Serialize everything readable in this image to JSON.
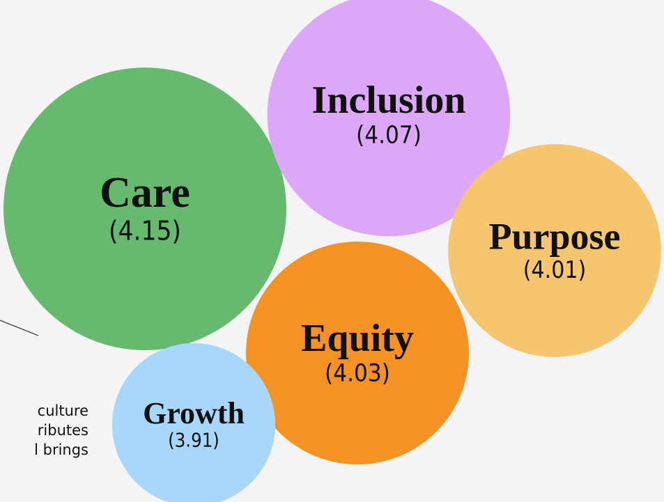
{
  "chart_data": {
    "type": "bubble",
    "categories": [
      "Care",
      "Inclusion",
      "Purpose",
      "Equity",
      "Growth"
    ],
    "values": [
      4.15,
      4.07,
      4.01,
      4.03,
      3.91
    ],
    "value_labels": [
      "(4.15)",
      "(4.07)",
      "(4.01)",
      "(4.03)",
      "(3.91)"
    ],
    "colors": [
      "#67b96f",
      "#dca7f8",
      "#f5c570",
      "#f49324",
      "#a9d6fb"
    ],
    "annotations": [
      "culture",
      "ributes",
      "l brings"
    ]
  }
}
